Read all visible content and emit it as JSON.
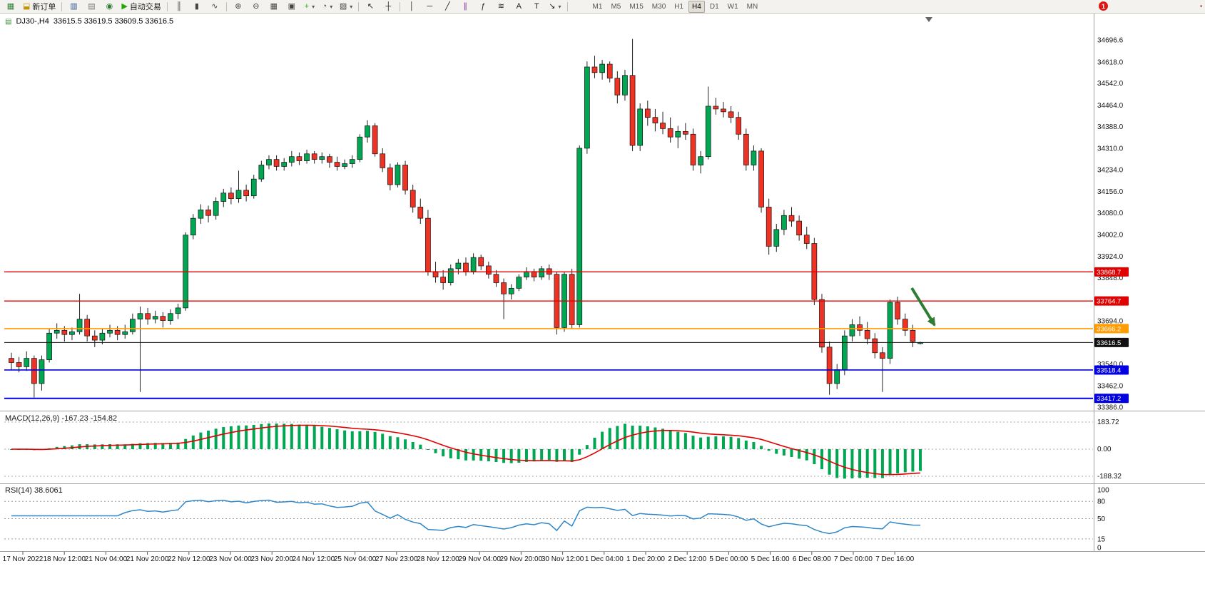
{
  "window": {
    "badge": "1",
    "corner_marker": "▪"
  },
  "toolbar": {
    "buttons": [
      {
        "name": "new-chart",
        "glyph": "▦",
        "color": "#2e7d32"
      },
      {
        "name": "new-order",
        "glyph": "⬓",
        "color": "#c29200",
        "label": "新订单"
      },
      {
        "name": "sep"
      },
      {
        "name": "market-watch",
        "glyph": "▥",
        "color": "#33548f"
      },
      {
        "name": "data-window",
        "glyph": "▤",
        "color": "#777777"
      },
      {
        "name": "navigator",
        "glyph": "◉",
        "color": "#2f7d32"
      },
      {
        "name": "autotrading",
        "glyph": "▶",
        "color": "#1faa00",
        "label": "自动交易"
      },
      {
        "name": "sep"
      },
      {
        "name": "bars-chart",
        "glyph": "║",
        "color": "#444444"
      },
      {
        "name": "candles-chart",
        "glyph": "▮",
        "color": "#444444"
      },
      {
        "name": "line-chart",
        "glyph": "∿",
        "color": "#444444"
      },
      {
        "name": "sep"
      },
      {
        "name": "zoom-in",
        "glyph": "⊕",
        "color": "#444444"
      },
      {
        "name": "zoom-out",
        "glyph": "⊖",
        "color": "#444444"
      },
      {
        "name": "tile-windows",
        "glyph": "▦",
        "color": "#444444"
      },
      {
        "name": "auto-arrange",
        "glyph": "▣",
        "color": "#444444"
      },
      {
        "name": "indicators",
        "glyph": "+",
        "color": "#1faa00",
        "dropdown": true
      },
      {
        "name": "periods",
        "glyph": "◔",
        "color": "#444444",
        "dropdown": true
      },
      {
        "name": "templates",
        "glyph": "▨",
        "color": "#444444",
        "dropdown": true
      },
      {
        "name": "sep"
      },
      {
        "name": "cursor",
        "glyph": "↖",
        "color": "#222222"
      },
      {
        "name": "crosshair",
        "glyph": "┼",
        "color": "#222222"
      },
      {
        "name": "sep"
      },
      {
        "name": "vertical-line",
        "glyph": "│",
        "color": "#222222"
      },
      {
        "name": "horizontal-line",
        "glyph": "─",
        "color": "#222222"
      },
      {
        "name": "trendline",
        "glyph": "╱",
        "color": "#222222"
      },
      {
        "name": "equidistant-channel",
        "glyph": "∥",
        "color": "#7b2f8d"
      },
      {
        "name": "fibonacci",
        "glyph": "ƒ",
        "color": "#222222"
      },
      {
        "name": "shapes",
        "glyph": "≋",
        "color": "#222222"
      },
      {
        "name": "text",
        "glyph": "A",
        "color": "#222222"
      },
      {
        "name": "text-label",
        "glyph": "T",
        "color": "#222222"
      },
      {
        "name": "arrows",
        "glyph": "↘",
        "color": "#222222",
        "dropdown": true
      },
      {
        "name": "sep"
      }
    ],
    "timeframes": [
      "M1",
      "M5",
      "M15",
      "M30",
      "H1",
      "H4",
      "D1",
      "W1",
      "MN"
    ],
    "active_timeframe": "H4"
  },
  "header": {
    "symbol_tf": "DJ30-,H4",
    "ohlc": "33615.5 33619.5 33609.5 33616.5"
  },
  "chart_data": {
    "type": "candlestick",
    "symbol": "DJ30-",
    "timeframe": "H4",
    "current_bar": {
      "open": 33615.5,
      "high": 33619.5,
      "low": 33609.5,
      "close": 33616.5
    },
    "colors": {
      "up": "#00a651",
      "down": "#ee3224",
      "wick": "#222222"
    },
    "y_axis_ticks": [
      {
        "v": 34696.6,
        "label": "34696.6"
      },
      {
        "v": 34618.0,
        "label": "34618.0"
      },
      {
        "v": 34542.0,
        "label": "34542.0"
      },
      {
        "v": 34464.0,
        "label": "34464.0"
      },
      {
        "v": 34388.0,
        "label": "34388.0"
      },
      {
        "v": 34310.0,
        "label": "34310.0"
      },
      {
        "v": 34234.0,
        "label": "34234.0"
      },
      {
        "v": 34156.0,
        "label": "34156.0"
      },
      {
        "v": 34080.0,
        "label": "34080.0"
      },
      {
        "v": 34002.0,
        "label": "34002.0"
      },
      {
        "v": 33924.0,
        "label": "33924.0"
      },
      {
        "v": 33848.0,
        "label": "33848.0"
      },
      {
        "v": 33694.0,
        "label": "33694.0"
      },
      {
        "v": 33540.0,
        "label": "33540.0"
      },
      {
        "v": 33462.0,
        "label": "33462.0"
      },
      {
        "v": 33386.0,
        "label": "33386.0"
      }
    ],
    "price_lines": [
      {
        "price": 33868.7,
        "label": "33868.7",
        "color": "#e00000",
        "width": 1.3
      },
      {
        "price": 33764.7,
        "label": "33764.7",
        "color": "#e00000",
        "width": 1.3
      },
      {
        "price": 33666.2,
        "label": "33666.2",
        "color": "#ff9c00",
        "width": 1.6
      },
      {
        "price": 33616.5,
        "label": "33616.5",
        "color": "#111111",
        "width": 1
      },
      {
        "price": 33518.4,
        "label": "33518.4",
        "color": "#0000e1",
        "width": 1.6
      },
      {
        "price": 33417.2,
        "label": "33417.2",
        "color": "#0000e1",
        "width": 2
      }
    ],
    "candles": [
      [
        33560,
        33580,
        33520,
        33545
      ],
      [
        33545,
        33565,
        33510,
        33530
      ],
      [
        33530,
        33585,
        33515,
        33560
      ],
      [
        33560,
        33570,
        33420,
        33470
      ],
      [
        33470,
        33570,
        33445,
        33555
      ],
      [
        33555,
        33665,
        33545,
        33650
      ],
      [
        33650,
        33685,
        33630,
        33660
      ],
      [
        33660,
        33675,
        33620,
        33645
      ],
      [
        33645,
        33670,
        33625,
        33655
      ],
      [
        33655,
        33790,
        33645,
        33700
      ],
      [
        33700,
        33715,
        33620,
        33640
      ],
      [
        33640,
        33660,
        33600,
        33625
      ],
      [
        33625,
        33665,
        33610,
        33650
      ],
      [
        33650,
        33680,
        33635,
        33660
      ],
      [
        33660,
        33675,
        33625,
        33645
      ],
      [
        33645,
        33680,
        33630,
        33655
      ],
      [
        33655,
        33720,
        33645,
        33700
      ],
      [
        33700,
        33745,
        33440,
        33720
      ],
      [
        33720,
        33740,
        33680,
        33700
      ],
      [
        33700,
        33730,
        33685,
        33710
      ],
      [
        33710,
        33725,
        33670,
        33695
      ],
      [
        33695,
        33735,
        33680,
        33720
      ],
      [
        33720,
        33755,
        33700,
        33740
      ],
      [
        33740,
        34010,
        33730,
        34000
      ],
      [
        34000,
        34075,
        33985,
        34060
      ],
      [
        34060,
        34110,
        34040,
        34090
      ],
      [
        34090,
        34105,
        34045,
        34070
      ],
      [
        34070,
        34135,
        34055,
        34120
      ],
      [
        34120,
        34165,
        34100,
        34150
      ],
      [
        34150,
        34170,
        34110,
        34130
      ],
      [
        34130,
        34230,
        34115,
        34160
      ],
      [
        34160,
        34180,
        34120,
        34140
      ],
      [
        34140,
        34215,
        34130,
        34200
      ],
      [
        34200,
        34265,
        34190,
        34250
      ],
      [
        34250,
        34285,
        34235,
        34270
      ],
      [
        34270,
        34285,
        34230,
        34245
      ],
      [
        34245,
        34275,
        34230,
        34260
      ],
      [
        34260,
        34300,
        34245,
        34280
      ],
      [
        34280,
        34295,
        34250,
        34265
      ],
      [
        34265,
        34305,
        34255,
        34290
      ],
      [
        34290,
        34300,
        34255,
        34270
      ],
      [
        34270,
        34295,
        34255,
        34280
      ],
      [
        34280,
        34290,
        34240,
        34260
      ],
      [
        34260,
        34280,
        34230,
        34245
      ],
      [
        34245,
        34270,
        34235,
        34255
      ],
      [
        34255,
        34285,
        34240,
        34270
      ],
      [
        34270,
        34360,
        34260,
        34350
      ],
      [
        34350,
        34410,
        34330,
        34390
      ],
      [
        34390,
        34400,
        34280,
        34290
      ],
      [
        34290,
        34310,
        34225,
        34240
      ],
      [
        34240,
        34255,
        34160,
        34180
      ],
      [
        34180,
        34260,
        34170,
        34250
      ],
      [
        34250,
        34265,
        34145,
        34160
      ],
      [
        34160,
        34180,
        34080,
        34100
      ],
      [
        34100,
        34130,
        34040,
        34060
      ],
      [
        34060,
        34090,
        33855,
        33870
      ],
      [
        33870,
        33905,
        33830,
        33850
      ],
      [
        33850,
        33875,
        33805,
        33830
      ],
      [
        33830,
        33895,
        33820,
        33880
      ],
      [
        33880,
        33915,
        33860,
        33900
      ],
      [
        33900,
        33920,
        33855,
        33870
      ],
      [
        33870,
        33935,
        33860,
        33920
      ],
      [
        33920,
        33930,
        33875,
        33890
      ],
      [
        33890,
        33905,
        33845,
        33860
      ],
      [
        33860,
        33875,
        33815,
        33830
      ],
      [
        33830,
        33845,
        33700,
        33790
      ],
      [
        33790,
        33825,
        33770,
        33810
      ],
      [
        33810,
        33860,
        33800,
        33850
      ],
      [
        33850,
        33885,
        33840,
        33870
      ],
      [
        33870,
        33880,
        33835,
        33850
      ],
      [
        33850,
        33890,
        33840,
        33880
      ],
      [
        33880,
        33895,
        33840,
        33860
      ],
      [
        33860,
        33870,
        33645,
        33670
      ],
      [
        33670,
        33870,
        33655,
        33860
      ],
      [
        33860,
        33880,
        33665,
        33680
      ],
      [
        33680,
        34320,
        33670,
        34310
      ],
      [
        34310,
        34620,
        34290,
        34600
      ],
      [
        34600,
        34640,
        34560,
        34580
      ],
      [
        34580,
        34625,
        34555,
        34610
      ],
      [
        34610,
        34620,
        34545,
        34560
      ],
      [
        34560,
        34585,
        34470,
        34500
      ],
      [
        34500,
        34590,
        34480,
        34570
      ],
      [
        34570,
        34700,
        34300,
        34320
      ],
      [
        34320,
        34470,
        34300,
        34450
      ],
      [
        34450,
        34480,
        34390,
        34420
      ],
      [
        34420,
        34450,
        34370,
        34400
      ],
      [
        34400,
        34440,
        34360,
        34380
      ],
      [
        34380,
        34420,
        34330,
        34350
      ],
      [
        34350,
        34390,
        34310,
        34370
      ],
      [
        34370,
        34400,
        34340,
        34360
      ],
      [
        34360,
        34380,
        34230,
        34250
      ],
      [
        34250,
        34300,
        34220,
        34280
      ],
      [
        34280,
        34530,
        34270,
        34460
      ],
      [
        34460,
        34490,
        34430,
        34450
      ],
      [
        34450,
        34475,
        34420,
        34440
      ],
      [
        34440,
        34460,
        34400,
        34420
      ],
      [
        34420,
        34440,
        34340,
        34360
      ],
      [
        34360,
        34380,
        34230,
        34250
      ],
      [
        34250,
        34320,
        34230,
        34300
      ],
      [
        34300,
        34310,
        34080,
        34100
      ],
      [
        34100,
        34130,
        33930,
        33960
      ],
      [
        33960,
        34040,
        33940,
        34020
      ],
      [
        34020,
        34090,
        34000,
        34070
      ],
      [
        34070,
        34100,
        34030,
        34050
      ],
      [
        34050,
        34070,
        33980,
        34000
      ],
      [
        34000,
        34030,
        33950,
        33970
      ],
      [
        33970,
        33990,
        33750,
        33770
      ],
      [
        33770,
        33790,
        33580,
        33600
      ],
      [
        33600,
        33620,
        33430,
        33470
      ],
      [
        33470,
        33540,
        33450,
        33520
      ],
      [
        33520,
        33660,
        33500,
        33640
      ],
      [
        33640,
        33700,
        33620,
        33680
      ],
      [
        33680,
        33710,
        33640,
        33660
      ],
      [
        33660,
        33690,
        33610,
        33630
      ],
      [
        33630,
        33650,
        33560,
        33580
      ],
      [
        33580,
        33600,
        33440,
        33560
      ],
      [
        33560,
        33770,
        33540,
        33760
      ],
      [
        33760,
        33780,
        33680,
        33700
      ],
      [
        33700,
        33720,
        33640,
        33660
      ],
      [
        33660,
        33680,
        33600,
        33620
      ],
      [
        33615.5,
        33619.5,
        33609.5,
        33616.5
      ]
    ],
    "time_labels": [
      "17 Nov 2022",
      "18 Nov 12:00",
      "21 Nov 04:00",
      "21 Nov 20:00",
      "22 Nov 12:00",
      "23 Nov 04:00",
      "23 Nov 20:00",
      "24 Nov 12:00",
      "25 Nov 04:00",
      "27 Nov 23:00",
      "28 Nov 12:00",
      "29 Nov 04:00",
      "29 Nov 20:00",
      "30 Nov 12:00",
      "1 Dec 04:00",
      "1 Dec 20:00",
      "2 Dec 12:00",
      "5 Dec 00:00",
      "5 Dec 16:00",
      "6 Dec 08:00",
      "7 Dec 00:00",
      "7 Dec 16:00"
    ],
    "macd": {
      "label": "MACD(12,26,9) -167.23 -154.82",
      "params": [
        12,
        26,
        9
      ],
      "current_macd": -167.23,
      "current_signal": -154.82,
      "axis_labels": [
        "183.72",
        "0.00",
        "-188.32"
      ],
      "histogram_color": "#00a651",
      "signal_color": "#e00000"
    },
    "rsi": {
      "label": "RSI(14) 38.6061",
      "period": 14,
      "current": 38.6061,
      "levels": [
        "100",
        "80",
        "50",
        "15",
        "0"
      ],
      "line_color": "#2f86c8"
    },
    "annotation": {
      "type": "arrow",
      "color": "#2e7d32"
    }
  }
}
